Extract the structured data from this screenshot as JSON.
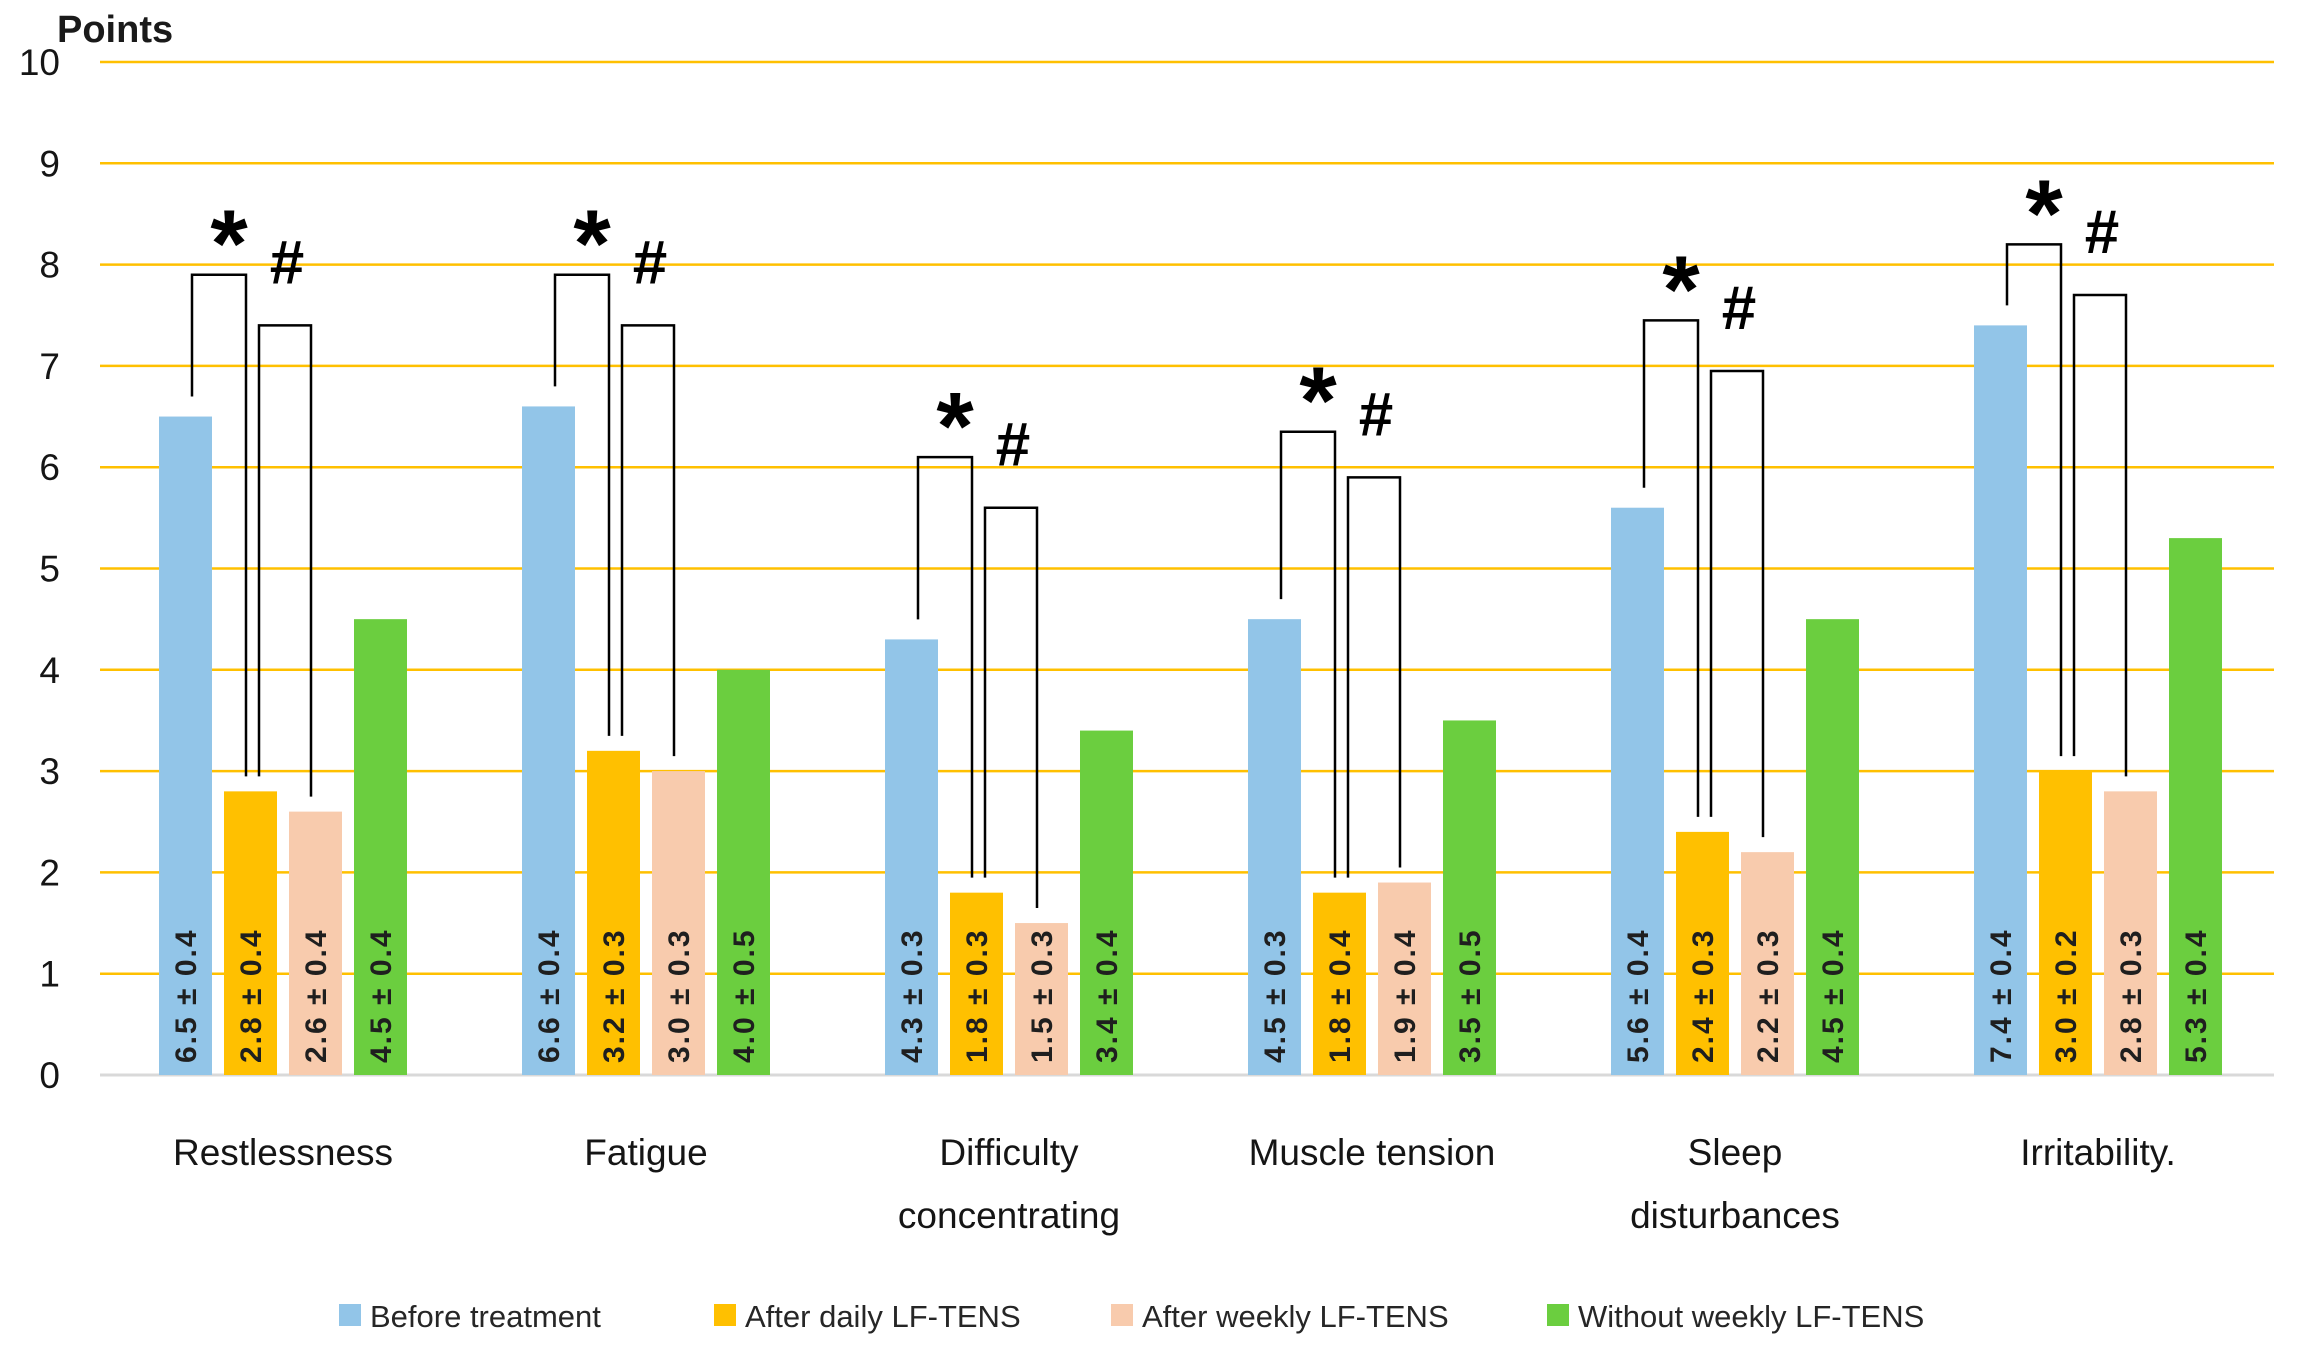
{
  "axis_title": "Points",
  "legend": [
    {
      "label": "Before treatment",
      "color": "#92C5E8"
    },
    {
      "label": "After daily LF-TENS",
      "color": "#FFC000"
    },
    {
      "label": "After weekly LF-TENS",
      "color": "#F8CBAD"
    },
    {
      "label": "Without weekly LF-TENS",
      "color": "#6BCE3F"
    }
  ],
  "chart_data": {
    "type": "bar",
    "title": "Points",
    "xlabel": "",
    "ylabel": "Points",
    "ylim": [
      0,
      10
    ],
    "yticks": [
      0,
      1,
      2,
      3,
      4,
      5,
      6,
      7,
      8,
      9,
      10
    ],
    "grid": true,
    "grid_color": "#FFC000",
    "zero_line_color": "#D9D9D9",
    "legend_position": "bottom",
    "categories": [
      "Restlessness",
      "Fatigue",
      "Difficulty concentrating",
      "Muscle tension",
      "Sleep disturbances",
      "Irritability."
    ],
    "category_lines": [
      [
        "Restlessness"
      ],
      [
        "Fatigue"
      ],
      [
        "Difficulty",
        "concentrating"
      ],
      [
        "Muscle tension"
      ],
      [
        "Sleep",
        "disturbances"
      ],
      [
        "Irritability."
      ]
    ],
    "series": [
      {
        "name": "Before treatment",
        "color": "#92C5E8",
        "values": [
          6.5,
          6.6,
          4.3,
          4.5,
          5.6,
          7.4
        ],
        "errors": [
          0.4,
          0.4,
          0.3,
          0.3,
          0.4,
          0.4
        ],
        "labels": [
          "6.5 ± 0.4",
          "6.6 ± 0.4",
          "4.3 ± 0.3",
          "4.5 ± 0.3",
          "5.6 ± 0.4",
          "7.4 ± 0.4"
        ]
      },
      {
        "name": "After daily LF-TENS",
        "color": "#FFC000",
        "values": [
          2.8,
          3.2,
          1.8,
          1.8,
          2.4,
          3.0
        ],
        "errors": [
          0.4,
          0.3,
          0.3,
          0.4,
          0.3,
          0.2
        ],
        "labels": [
          "2.8 ± 0.4",
          "3.2 ± 0.3",
          "1.8 ± 0.3",
          "1.8 ± 0.4",
          "2.4 ± 0.3",
          "3.0 ± 0.2"
        ]
      },
      {
        "name": "After weekly LF-TENS",
        "color": "#F8CBAD",
        "values": [
          2.6,
          3.0,
          1.5,
          1.9,
          2.2,
          2.8
        ],
        "errors": [
          0.4,
          0.3,
          0.3,
          0.4,
          0.3,
          0.3
        ],
        "labels": [
          "2.6 ± 0.4",
          "3.0 ± 0.3",
          "1.5 ± 0.3",
          "1.9 ± 0.4",
          "2.2 ± 0.3",
          "2.8 ± 0.3"
        ]
      },
      {
        "name": "Without weekly LF-TENS",
        "color": "#6BCE3F",
        "values": [
          4.5,
          4.0,
          3.4,
          3.5,
          4.5,
          5.3
        ],
        "errors": [
          0.4,
          0.5,
          0.4,
          0.5,
          0.4,
          0.4
        ],
        "labels": [
          "4.5 ± 0.4",
          "4.0 ± 0.5",
          "3.4 ± 0.4",
          "3.5 ± 0.5",
          "4.5 ± 0.4",
          "5.3 ± 0.4"
        ]
      }
    ],
    "significance": {
      "star_symbol": "*",
      "hash_symbol": "#",
      "star_bracket_tops": [
        7.9,
        7.9,
        6.1,
        6.35,
        7.45,
        8.2
      ],
      "hash_bracket_tops": [
        7.4,
        7.4,
        5.6,
        5.9,
        6.95,
        7.7
      ]
    }
  }
}
